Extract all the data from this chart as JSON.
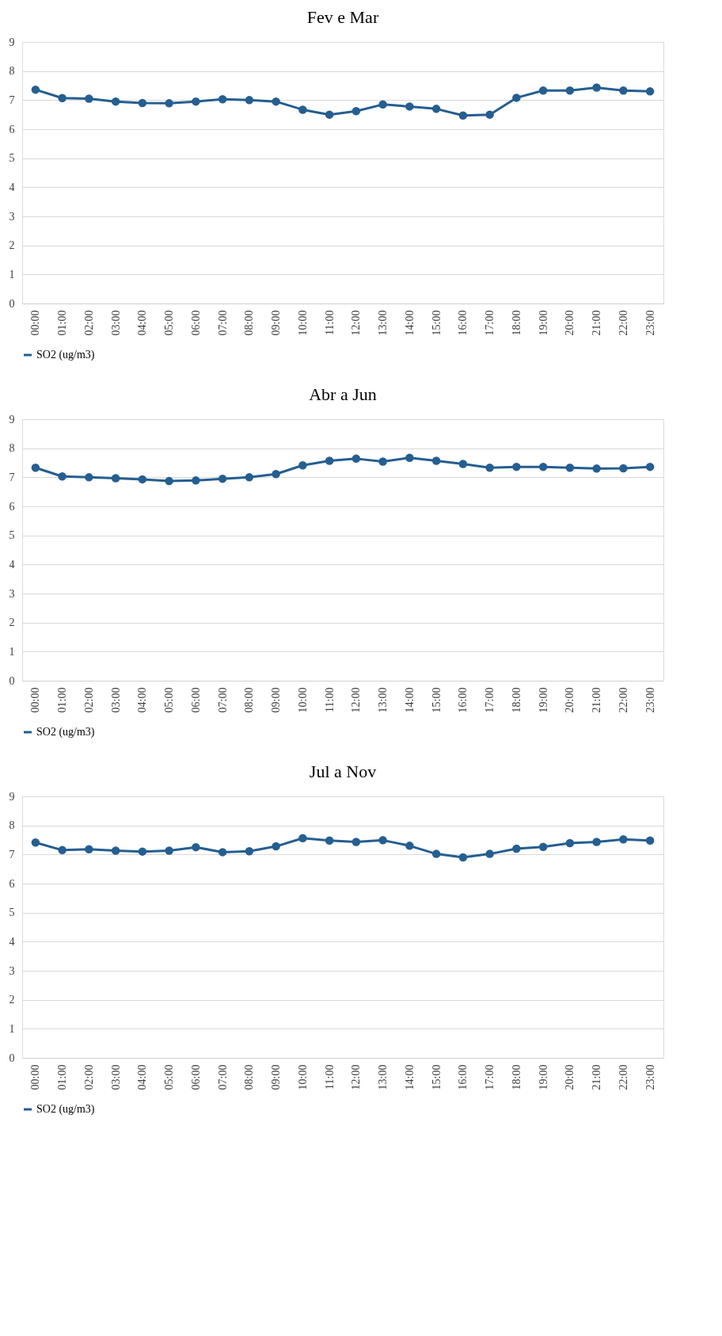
{
  "chart_data": [
    {
      "type": "line",
      "title": "Fev e Mar",
      "categories": [
        "00:00",
        "01:00",
        "02:00",
        "03:00",
        "04:00",
        "05:00",
        "06:00",
        "07:00",
        "08:00",
        "09:00",
        "10:00",
        "11:00",
        "12:00",
        "13:00",
        "14:00",
        "15:00",
        "16:00",
        "17:00",
        "18:00",
        "19:00",
        "20:00",
        "21:00",
        "22:00",
        "23:00"
      ],
      "series": [
        {
          "name": "SO2 (ug/m3)",
          "color": "#255e91",
          "values": [
            7.36,
            7.07,
            7.05,
            6.95,
            6.9,
            6.89,
            6.95,
            7.03,
            7.0,
            6.95,
            6.67,
            6.5,
            6.62,
            6.85,
            6.78,
            6.7,
            6.47,
            6.5,
            7.08,
            7.33,
            7.33,
            7.43,
            7.33,
            7.3
          ]
        }
      ],
      "ylim": [
        0,
        9
      ],
      "yticks": [
        0,
        1,
        2,
        3,
        4,
        5,
        6,
        7,
        8,
        9
      ],
      "grid": "y",
      "legend": "bottom",
      "marker": "circle",
      "line_style": "solid"
    },
    {
      "type": "line",
      "title": "Abr a Jun",
      "categories": [
        "00:00",
        "01:00",
        "02:00",
        "03:00",
        "04:00",
        "05:00",
        "06:00",
        "07:00",
        "08:00",
        "09:00",
        "10:00",
        "11:00",
        "12:00",
        "13:00",
        "14:00",
        "15:00",
        "16:00",
        "17:00",
        "18:00",
        "19:00",
        "20:00",
        "21:00",
        "22:00",
        "23:00"
      ],
      "series": [
        {
          "name": "SO2 (ug/m3)",
          "color": "#255e91",
          "values": [
            7.33,
            7.03,
            7.0,
            6.97,
            6.93,
            6.87,
            6.89,
            6.95,
            7.0,
            7.11,
            7.41,
            7.57,
            7.64,
            7.54,
            7.67,
            7.57,
            7.46,
            7.33,
            7.36,
            7.36,
            7.33,
            7.3,
            7.31,
            7.36
          ]
        }
      ],
      "ylim": [
        0,
        9
      ],
      "yticks": [
        0,
        1,
        2,
        3,
        4,
        5,
        6,
        7,
        8,
        9
      ],
      "grid": "y",
      "legend": "bottom",
      "marker": "circle",
      "line_style": "solid"
    },
    {
      "type": "line",
      "title": "Jul a Nov",
      "categories": [
        "00:00",
        "01:00",
        "02:00",
        "03:00",
        "04:00",
        "05:00",
        "06:00",
        "07:00",
        "08:00",
        "09:00",
        "10:00",
        "11:00",
        "12:00",
        "13:00",
        "14:00",
        "15:00",
        "16:00",
        "17:00",
        "18:00",
        "19:00",
        "20:00",
        "21:00",
        "22:00",
        "23:00"
      ],
      "series": [
        {
          "name": "SO2 (ug/m3)",
          "color": "#255e91",
          "values": [
            7.41,
            7.15,
            7.18,
            7.13,
            7.1,
            7.13,
            7.25,
            7.08,
            7.11,
            7.28,
            7.56,
            7.48,
            7.43,
            7.49,
            7.3,
            7.02,
            6.9,
            7.02,
            7.2,
            7.26,
            7.39,
            7.43,
            7.52,
            7.48
          ]
        }
      ],
      "ylim": [
        0,
        9
      ],
      "yticks": [
        0,
        1,
        2,
        3,
        4,
        5,
        6,
        7,
        8,
        9
      ],
      "grid": "y",
      "legend": "bottom",
      "marker": "circle",
      "line_style": "solid"
    }
  ]
}
